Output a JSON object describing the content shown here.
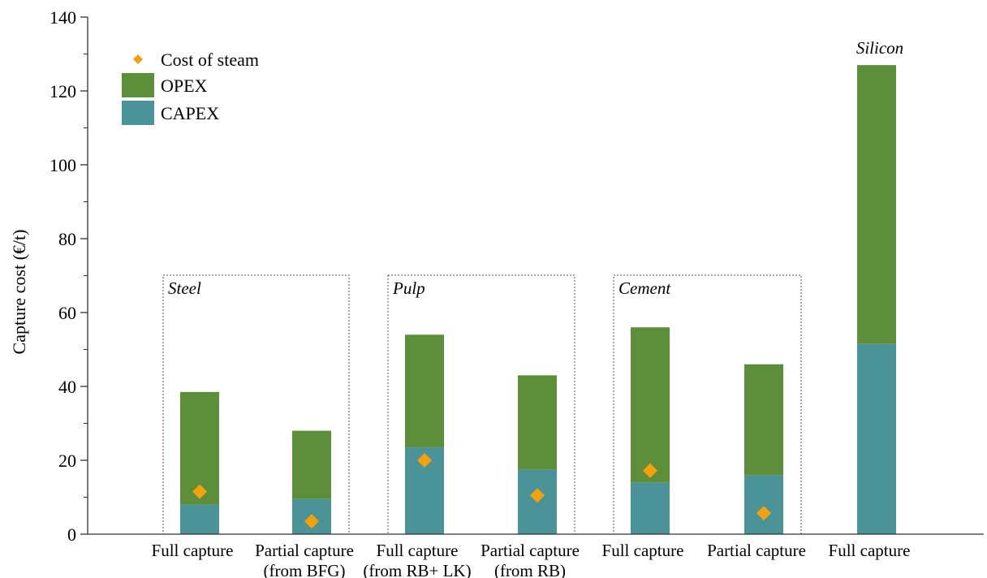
{
  "chart_data": {
    "type": "bar",
    "stacked": true,
    "ylabel": "Capture cost (€/t)",
    "xlabel": "",
    "ylim": [
      0,
      140
    ],
    "yticks": [
      0,
      20,
      40,
      60,
      80,
      100,
      120,
      140
    ],
    "grid": false,
    "legend_position": "top-left",
    "categories": [
      [
        "Full capture"
      ],
      [
        "Partial capture",
        "(from BFG)"
      ],
      [
        "Full capture",
        "(from RB+ LK)"
      ],
      [
        "Partial capture",
        "(from RB)"
      ],
      [
        "Full capture"
      ],
      [
        "Partial capture"
      ],
      [
        "Full capture"
      ]
    ],
    "groups": [
      {
        "label": "Steel",
        "categories": [
          0,
          1
        ],
        "boxed": true
      },
      {
        "label": "Pulp",
        "categories": [
          2,
          3
        ],
        "boxed": true
      },
      {
        "label": "Cement",
        "categories": [
          4,
          5
        ],
        "boxed": true
      },
      {
        "label": "Silicon",
        "categories": [
          6
        ],
        "boxed": false
      }
    ],
    "series": [
      {
        "name": "CAPEX",
        "kind": "bar",
        "color": "#4a9499",
        "values": [
          8,
          9.5,
          23.5,
          17.5,
          14,
          16,
          51.5
        ]
      },
      {
        "name": "OPEX",
        "kind": "bar",
        "color": "#5d8f3a",
        "values": [
          30.5,
          18.5,
          30.5,
          25.5,
          42,
          30,
          75.5
        ]
      },
      {
        "name": "Cost of steam",
        "kind": "marker",
        "marker": "diamond",
        "color": "#f5a20a",
        "values": [
          11.5,
          3.5,
          20,
          10.5,
          17.2,
          5.7,
          null
        ]
      }
    ],
    "legend_order": [
      "Cost of steam",
      "OPEX",
      "CAPEX"
    ]
  }
}
